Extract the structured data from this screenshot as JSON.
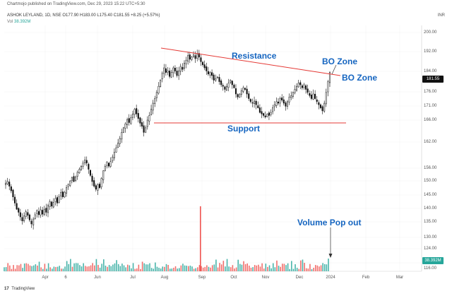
{
  "header": {
    "published": "Chartmojo published on TradingView.com, Dec 29, 2023 15:22 UTC+5:30",
    "symbol_line": "ASHOK LEYLAND, 1D, NSE  O177.90  H183.00  L175.40  C181.55  +8.25 (+5.57%)",
    "volume_label": "Vol",
    "volume_value": "38.392M",
    "currency": "INR"
  },
  "footer": {
    "logo": "17",
    "brand": "TradingView"
  },
  "price_tag": "181.55",
  "volume_tag": "38.392M",
  "chart_data": {
    "type": "candlestick",
    "title": "",
    "y_axis": {
      "ticks": [
        "200.00",
        "192.00",
        "184.00",
        "176.00",
        "171.00",
        "166.00",
        "162.00",
        "156.00",
        "150.00",
        "145.00",
        "140.00",
        "135.00",
        "130.00",
        "124.00",
        "120.00",
        "116.00"
      ],
      "range": [
        114,
        202
      ]
    },
    "x_axis": {
      "ticks": [
        "Apr",
        "6",
        "Jun",
        "Jul",
        "Aug",
        "Sep",
        "Oct",
        "Nov",
        "Dec",
        "2024",
        "Feb",
        "Mar"
      ]
    },
    "closes": [
      145.5,
      146,
      144.5,
      143,
      141,
      139,
      137,
      136,
      134.5,
      133.2,
      134.8,
      136.2,
      135,
      133.5,
      132.2,
      133.8,
      135.2,
      136.6,
      135.2,
      136.8,
      135.4,
      137,
      136,
      138.2,
      139.5,
      138,
      139.2,
      140.5,
      139,
      141,
      142.5,
      141,
      142.5,
      144,
      145,
      146.2,
      147.3,
      146,
      147.5,
      149,
      150,
      151,
      152,
      153,
      152,
      150,
      148,
      146,
      144.5,
      143.5,
      145,
      144,
      147,
      149.5,
      151,
      152.4,
      151,
      152.5,
      154,
      155.5,
      157,
      158.5,
      160,
      162,
      163.5,
      164.8,
      166.2,
      165.2,
      166.8,
      168,
      169.5,
      168,
      166.5,
      165,
      164,
      162,
      163.5,
      166,
      167.5,
      169.5,
      171.5,
      173,
      175,
      177,
      179,
      181.2,
      183,
      181.5,
      182,
      180.2,
      181.5,
      183,
      182,
      180.5,
      182,
      183.5,
      182.5,
      184.5,
      185.5,
      187,
      185.8,
      186.5,
      187.2,
      186,
      187.5,
      186.5,
      185,
      184,
      183,
      182,
      181,
      181.5,
      180.5,
      179,
      179.5,
      180,
      178.5,
      177.5,
      177,
      176,
      177,
      178,
      179,
      177.5,
      176.5,
      174.5,
      173.5,
      174.5,
      175.5,
      176.5,
      176,
      174.5,
      173,
      172,
      171.5,
      172.2,
      171,
      170,
      168.5,
      168,
      167.5,
      167,
      168,
      167.5,
      168.5,
      170,
      171,
      172,
      171.5,
      173,
      172.5,
      171.5,
      170.5,
      172,
      173.5,
      174,
      175,
      176,
      177,
      178,
      177.5,
      176.5,
      177.5,
      176,
      175,
      174,
      173,
      174.5,
      173,
      172,
      171,
      170,
      169,
      171.5,
      175,
      178.5,
      181.55
    ],
    "volume_spikes": [
      {
        "position": "late August",
        "relative": "largest volume bar"
      },
      {
        "position": "Dec 29, 2023",
        "value": "38.392M"
      }
    ],
    "trendlines": [
      {
        "name": "Resistance",
        "color": "#e53935",
        "direction": "descending"
      },
      {
        "name": "Support",
        "color": "#e53935",
        "direction": "flat",
        "level": 166
      }
    ],
    "annotations": [
      "Resistance",
      "Support",
      "BO Zone",
      "BO Zone",
      "Volume Pop out"
    ]
  }
}
